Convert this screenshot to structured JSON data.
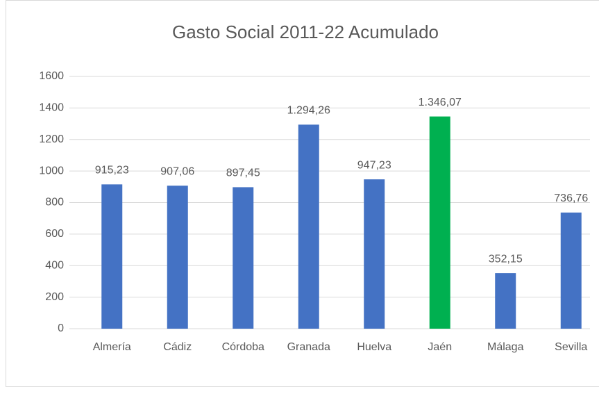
{
  "chart_data": {
    "type": "bar",
    "title": "Gasto Social 2011-22 Acumulado",
    "categories": [
      "Almería",
      "Cádiz",
      "Córdoba",
      "Granada",
      "Huelva",
      "Jaén",
      "Málaga",
      "Sevilla"
    ],
    "values": [
      915.23,
      907.06,
      897.45,
      1294.26,
      947.23,
      1346.07,
      352.15,
      736.76
    ],
    "value_labels": [
      "915,23",
      "907,06",
      "897,45",
      "1.294,26",
      "947,23",
      "1.346,07",
      "352,15",
      "736,76"
    ],
    "colors": [
      "#4472c4",
      "#4472c4",
      "#4472c4",
      "#4472c4",
      "#4472c4",
      "#00b050",
      "#4472c4",
      "#4472c4"
    ],
    "ylim": [
      0,
      1600
    ],
    "yticks": [
      0,
      200,
      400,
      600,
      800,
      1000,
      1200,
      1400,
      1600
    ],
    "grid": true
  }
}
